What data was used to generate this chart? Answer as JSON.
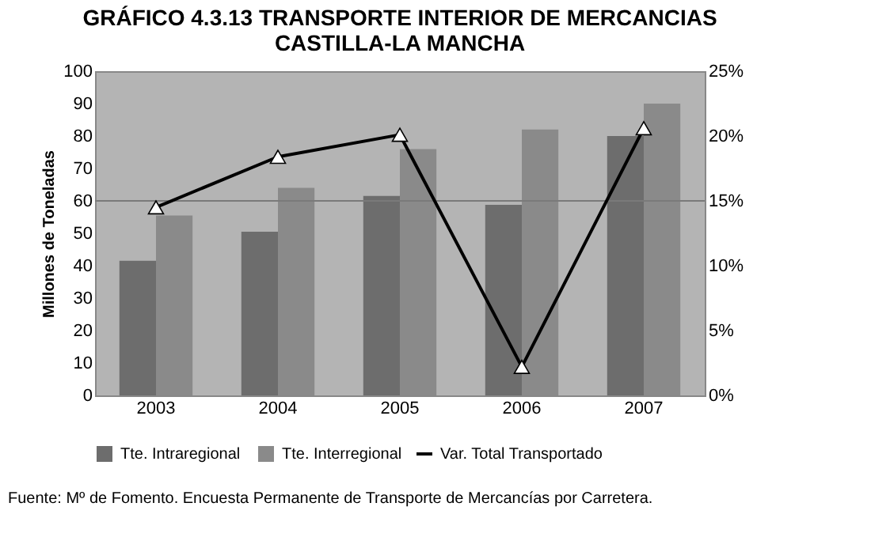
{
  "chart_data": {
    "type": "bar",
    "title": [
      "GRÁFICO 4.3.13 TRANSPORTE INTERIOR DE MERCANCIAS",
      "CASTILLA-LA MANCHA"
    ],
    "ylabel": "Millones de Toneladas",
    "categories": [
      "2003",
      "2004",
      "2005",
      "2006",
      "2007"
    ],
    "series": [
      {
        "name": "Tte. Intraregional",
        "color": "#6d6d6d",
        "values": [
          41.5,
          50.5,
          61.5,
          58.8,
          80
        ]
      },
      {
        "name": "Tte. Interregional",
        "color": "#8a8a8a",
        "values": [
          55.5,
          64,
          76,
          82,
          90
        ]
      },
      {
        "name": "Var. Total Transportado",
        "type": "line",
        "axis": "y2",
        "color": "#000000",
        "marker": "triangle",
        "values": [
          14.5,
          18.4,
          20.1,
          2.2,
          20.6
        ]
      }
    ],
    "ylim": [
      0,
      100
    ],
    "yticks": [
      0,
      10,
      20,
      30,
      40,
      50,
      60,
      70,
      80,
      90,
      100
    ],
    "y2lim": [
      0,
      25
    ],
    "y2ticks": [
      {
        "value": 0,
        "label": "0%"
      },
      {
        "value": 5,
        "label": "5%"
      },
      {
        "value": 10,
        "label": "10%"
      },
      {
        "value": 15,
        "label": "15%"
      },
      {
        "value": 20,
        "label": "20%"
      },
      {
        "value": 25,
        "label": "25%"
      }
    ],
    "ref_lines": [
      {
        "axis": "y",
        "value": 60,
        "color": "#7a7a7a"
      }
    ],
    "legend": "bottom",
    "grid": false,
    "annotations": [
      "Fuente: Mº de Fomento. Encuesta Permanente de Transporte de Mercancías por Carretera."
    ]
  }
}
